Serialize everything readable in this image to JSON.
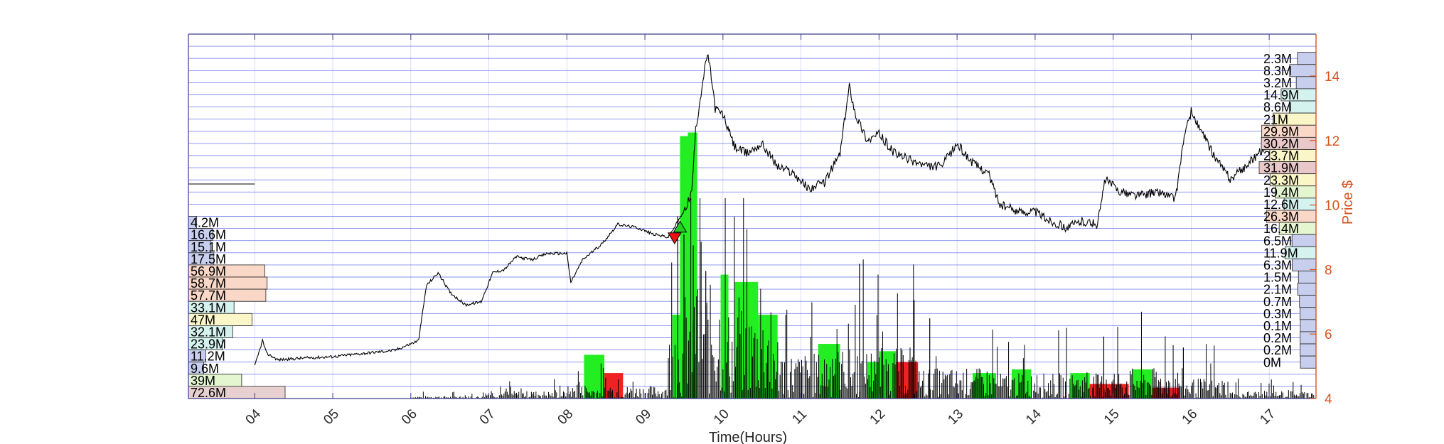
{
  "chart_data": {
    "type": "line",
    "title": "",
    "xlabel": "Time(Hours)",
    "ylabel": "Price $",
    "x_ticks": [
      "04",
      "05",
      "06",
      "07",
      "08",
      "09",
      "10",
      "11",
      "12",
      "13",
      "14",
      "15",
      "16",
      "17"
    ],
    "x_range": [
      3.15,
      17.6
    ],
    "ylim": [
      4,
      15.3
    ],
    "y_ticks": [
      4,
      6,
      8,
      10,
      12,
      14
    ],
    "grid": true,
    "price_series": {
      "name": "",
      "x": [
        4.0,
        4.1,
        4.15,
        4.3,
        4.6,
        5.0,
        5.4,
        5.8,
        6.1,
        6.2,
        6.35,
        6.5,
        6.7,
        6.9,
        7.05,
        7.2,
        7.35,
        7.55,
        7.75,
        8.0,
        8.05,
        8.2,
        8.45,
        8.65,
        8.9,
        9.1,
        9.3,
        9.4,
        9.5,
        9.6,
        9.65,
        9.72,
        9.8,
        9.85,
        9.9,
        10.0,
        10.15,
        10.3,
        10.5,
        10.7,
        10.9,
        11.1,
        11.3,
        11.5,
        11.62,
        11.7,
        11.85,
        12.0,
        12.2,
        12.4,
        12.6,
        12.8,
        13.0,
        13.2,
        13.4,
        13.55,
        13.8,
        14.0,
        14.2,
        14.4,
        14.6,
        14.8,
        14.9,
        15.1,
        15.3,
        15.6,
        15.8,
        15.9,
        16.0,
        16.1,
        16.3,
        16.5,
        16.7,
        16.9,
        17.0,
        17.2
      ],
      "y": [
        5.0,
        5.8,
        5.4,
        5.2,
        5.25,
        5.3,
        5.4,
        5.5,
        5.8,
        7.5,
        7.9,
        7.3,
        6.9,
        7.0,
        7.9,
        8.0,
        8.4,
        8.3,
        8.5,
        8.5,
        7.6,
        8.3,
        8.8,
        9.4,
        9.3,
        9.1,
        9.0,
        9.4,
        9.8,
        10.4,
        12.3,
        13.5,
        14.7,
        14.0,
        13.0,
        12.8,
        11.8,
        11.6,
        11.9,
        11.2,
        11.0,
        10.5,
        10.7,
        11.6,
        13.7,
        12.8,
        12.0,
        12.2,
        11.6,
        11.4,
        11.2,
        11.2,
        11.9,
        11.3,
        11.0,
        10.0,
        9.8,
        9.8,
        9.5,
        9.3,
        9.5,
        9.4,
        10.8,
        10.4,
        10.3,
        10.4,
        10.2,
        12.0,
        12.9,
        12.4,
        11.5,
        10.8,
        11.2,
        11.7,
        11.9,
        12.0
      ]
    },
    "volume_profile_left": {
      "labels": [
        "4.2M",
        "16.6M",
        "15.1M",
        "17.5M",
        "56.9M",
        "58.7M",
        "57.7M",
        "33.1M",
        "47M",
        "32.1M",
        "23.9M",
        "11.2M",
        "9.6M",
        "39M",
        "72.6M"
      ],
      "values": [
        4.2,
        16.6,
        15.1,
        17.5,
        56.9,
        58.7,
        57.7,
        33.1,
        47,
        32.1,
        23.9,
        11.2,
        9.6,
        39,
        72.6
      ],
      "colors": [
        "#c8cfee",
        "#c8cfee",
        "#c8cfee",
        "#c8cfee",
        "#f9d8c8",
        "#f9d8c8",
        "#f9d8c8",
        "#d4f2ee",
        "#fbf6c8",
        "#d4f2ee",
        "#d4f2ee",
        "#c8cfee",
        "#c8cfee",
        "#e4f6d0",
        "#e8d0d0"
      ]
    },
    "volume_profile_right": {
      "labels": [
        "2.3M",
        "8.3M",
        "3.2M",
        "14.9M",
        "8.6M",
        "21M",
        "29.9M",
        "30.2M",
        "23.7M",
        "31.9M",
        "23.3M",
        "19.4M",
        "12.6M",
        "26.3M",
        "16.4M",
        "6.5M",
        "11.9M",
        "6.3M",
        "1.5M",
        "2.1M",
        "0.7M",
        "0.3M",
        "0.1M",
        "0.2M",
        "0.2M",
        "0M"
      ],
      "values": [
        2.3,
        8.3,
        3.2,
        14.9,
        8.6,
        21,
        29.9,
        30.2,
        23.7,
        31.9,
        23.3,
        19.4,
        12.6,
        26.3,
        16.4,
        6.5,
        11.9,
        6.3,
        1.5,
        2.1,
        0.7,
        0.3,
        0.1,
        0.2,
        0.2,
        0
      ],
      "colors": [
        "#c8cfee",
        "#c8cfee",
        "#c8cfee",
        "#d4f2ee",
        "#d4f2ee",
        "#fbf6c8",
        "#f9d8c8",
        "#e8c8c8",
        "#fbf6c8",
        "#e8c8c8",
        "#fbf6c8",
        "#e4f6d0",
        "#d4f2ee",
        "#f9d8c8",
        "#e4f6d0",
        "#c8cfee",
        "#d4f2ee",
        "#c8cfee",
        "#c8cfee",
        "#c8cfee",
        "#c8cfee",
        "#c8cfee",
        "#c8cfee",
        "#c8cfee",
        "#c8cfee",
        "#c8cfee"
      ]
    },
    "volume_blocks": [
      {
        "x0": 8.22,
        "x1": 8.48,
        "level": 0.12,
        "color": "#22ee22"
      },
      {
        "x0": 8.48,
        "x1": 8.72,
        "level": 0.07,
        "color": "#ee2222"
      },
      {
        "x0": 9.35,
        "x1": 9.45,
        "level": 0.23,
        "color": "#22ee22"
      },
      {
        "x0": 9.45,
        "x1": 9.55,
        "level": 0.72,
        "color": "#22ee22"
      },
      {
        "x0": 9.55,
        "x1": 9.67,
        "level": 0.73,
        "color": "#22ee22"
      },
      {
        "x0": 9.97,
        "x1": 10.07,
        "level": 0.34,
        "color": "#22ee22"
      },
      {
        "x0": 10.15,
        "x1": 10.45,
        "level": 0.32,
        "color": "#22ee22"
      },
      {
        "x0": 10.45,
        "x1": 10.7,
        "level": 0.23,
        "color": "#22ee22"
      },
      {
        "x0": 11.22,
        "x1": 11.5,
        "level": 0.15,
        "color": "#22ee22"
      },
      {
        "x0": 11.85,
        "x1": 12.2,
        "level": 0.1,
        "color": "#22ee22"
      },
      {
        "x0": 12.0,
        "x1": 12.22,
        "level": 0.13,
        "color": "#22ee22"
      },
      {
        "x0": 12.22,
        "x1": 12.5,
        "level": 0.1,
        "color": "#ee2222"
      },
      {
        "x0": 13.2,
        "x1": 13.5,
        "level": 0.07,
        "color": "#22ee22"
      },
      {
        "x0": 13.7,
        "x1": 13.95,
        "level": 0.08,
        "color": "#22ee22"
      },
      {
        "x0": 14.45,
        "x1": 14.7,
        "level": 0.07,
        "color": "#22ee22"
      },
      {
        "x0": 14.7,
        "x1": 15.2,
        "level": 0.04,
        "color": "#ee2222"
      },
      {
        "x0": 15.25,
        "x1": 15.5,
        "level": 0.08,
        "color": "#22ee22"
      },
      {
        "x0": 15.5,
        "x1": 15.85,
        "level": 0.03,
        "color": "#ee2222"
      }
    ],
    "markers": [
      {
        "x": 9.45,
        "y": 9.3,
        "shape": "triangle-up",
        "color": "#22cc22"
      },
      {
        "x": 9.38,
        "y": 9.0,
        "shape": "triangle-down",
        "color": "#ee1111"
      }
    ],
    "colors": {
      "grid": "#6f78e6",
      "axis": "#3a3a8c",
      "right_axis": "#d9531e",
      "price_line": "#000000"
    }
  }
}
